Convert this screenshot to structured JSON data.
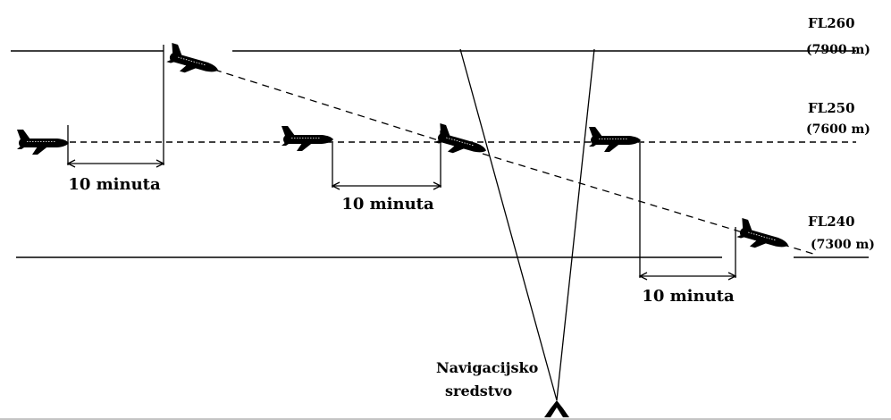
{
  "levels": [
    {
      "fl": "FL260",
      "alt": "(7900 m)"
    },
    {
      "fl": "FL250",
      "alt": "(7600 m)"
    },
    {
      "fl": "FL240",
      "alt": "(7300 m)"
    }
  ],
  "intervals": [
    "10 minuta",
    "10 minuta",
    "10 minuta"
  ],
  "navaid": {
    "line1": "Navigacijsko",
    "line2": "sredstvo"
  }
}
